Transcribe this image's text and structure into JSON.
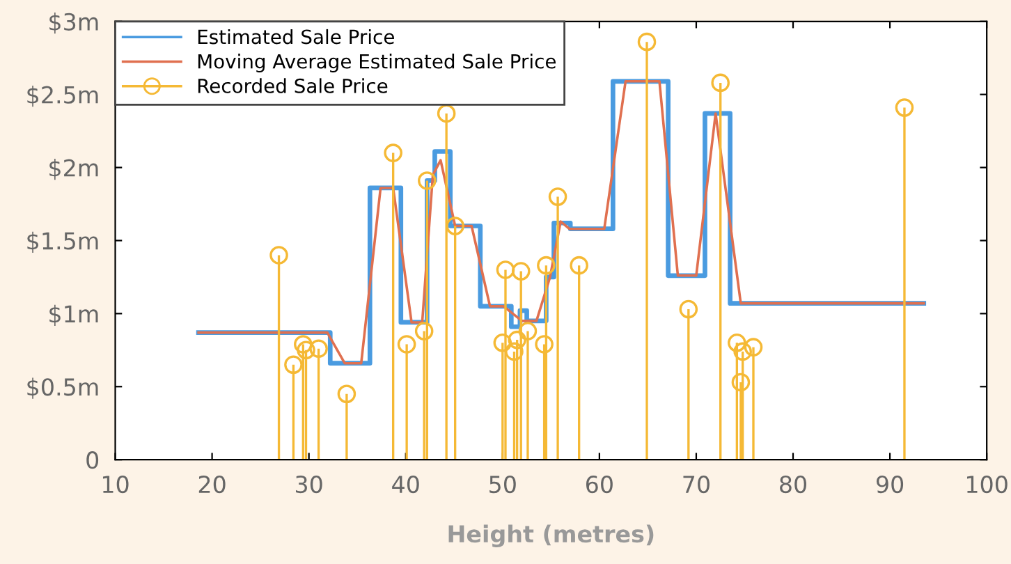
{
  "chart_data": {
    "type": "line",
    "xlabel": "Height (metres)",
    "xlim": [
      10,
      100
    ],
    "xticks": [
      10,
      20,
      30,
      40,
      50,
      60,
      70,
      80,
      90,
      100
    ],
    "ylim": [
      0,
      3
    ],
    "yticks": [
      {
        "value": 0,
        "label": "0"
      },
      {
        "value": 0.5,
        "label": "$0.5m"
      },
      {
        "value": 1,
        "label": "$1m"
      },
      {
        "value": 1.5,
        "label": "$1.5m"
      },
      {
        "value": 2,
        "label": "$2m"
      },
      {
        "value": 2.5,
        "label": "$2.5m"
      },
      {
        "value": 3,
        "label": "$3m"
      }
    ],
    "grid": false,
    "legend": "top left",
    "series": [
      {
        "name": "Estimated Sale Price",
        "type": "step",
        "color": "#4a9be0",
        "x": [
          18.6,
          32.2,
          36.3,
          39.5,
          42.2,
          43.0,
          44.6,
          47.7,
          50.9,
          51.8,
          52.5,
          54.5,
          55.3,
          57.0,
          61.4,
          67.1,
          70.9,
          73.5,
          93.5
        ],
        "values": [
          0.87,
          0.66,
          1.86,
          0.94,
          1.91,
          2.11,
          1.6,
          1.05,
          0.91,
          1.02,
          0.95,
          1.25,
          1.62,
          1.58,
          2.59,
          1.26,
          2.37,
          1.07,
          1.07
        ]
      },
      {
        "name": "Moving Average Estimated Sale Price",
        "type": "line",
        "color": "#e07050",
        "x": [
          18.6,
          31.9,
          33.7,
          35.4,
          37.4,
          38.7,
          40.6,
          41.7,
          42.8,
          43.6,
          45.1,
          46.8,
          48.7,
          50.1,
          52.0,
          53.5,
          54.9,
          56.0,
          56.9,
          60.5,
          62.7,
          66.2,
          68.1,
          70.0,
          72.0,
          74.6,
          93.5
        ],
        "values": [
          0.87,
          0.87,
          0.66,
          0.66,
          1.86,
          1.86,
          0.94,
          0.94,
          1.95,
          2.05,
          1.6,
          1.6,
          1.05,
          1.05,
          0.95,
          0.95,
          1.25,
          1.63,
          1.58,
          1.58,
          2.59,
          2.59,
          1.26,
          1.26,
          2.37,
          1.07,
          1.07
        ]
      },
      {
        "name": "Recorded Sale Price",
        "type": "lollipop",
        "color": "#f5b935",
        "marker": "circle",
        "x": [
          26.9,
          28.4,
          29.4,
          29.7,
          31.0,
          33.9,
          38.7,
          40.1,
          41.9,
          42.2,
          44.2,
          45.1,
          50.0,
          50.3,
          51.2,
          51.5,
          51.9,
          52.6,
          54.3,
          54.5,
          55.7,
          57.9,
          64.9,
          69.2,
          72.5,
          74.2,
          74.6,
          74.8,
          75.9,
          91.5
        ],
        "values": [
          1.4,
          0.65,
          0.79,
          0.75,
          0.76,
          0.45,
          2.1,
          0.79,
          0.88,
          1.91,
          2.37,
          1.6,
          0.8,
          1.3,
          0.74,
          0.82,
          1.29,
          0.88,
          0.79,
          1.33,
          1.8,
          1.33,
          2.86,
          1.03,
          2.58,
          0.8,
          0.53,
          0.74,
          0.77,
          2.41
        ]
      }
    ]
  }
}
